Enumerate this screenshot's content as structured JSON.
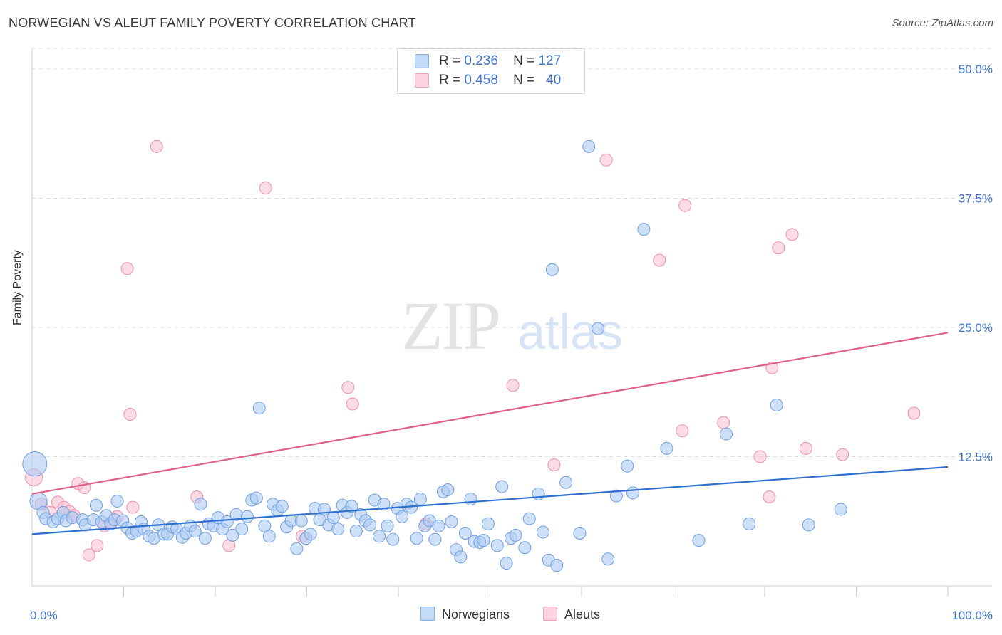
{
  "header": {
    "title": "NORWEGIAN VS ALEUT FAMILY POVERTY CORRELATION CHART",
    "source": "Source: ZipAtlas.com"
  },
  "legend": {
    "rows": [
      {
        "r_label": "R =",
        "r_value": "0.236",
        "n_label": "N =",
        "n_value": "127"
      },
      {
        "r_label": "R =",
        "r_value": "0.458",
        "n_label": "N =",
        "n_value": "40"
      }
    ]
  },
  "watermark": {
    "zip": "ZIP",
    "atlas": "atlas"
  },
  "colors": {
    "blue_fill": "#aeccf3",
    "blue_stroke": "#6f9fe0",
    "blue_line": "#2f6fcf",
    "pink_fill": "#f7bfd0",
    "pink_stroke": "#ec8fab",
    "pink_line": "#e0608c",
    "tick_text": "#3f74c9"
  },
  "chart_data": {
    "type": "scatter",
    "title": "NORWEGIAN VS ALEUT FAMILY POVERTY CORRELATION CHART",
    "xlabel": "",
    "ylabel": "Family Poverty",
    "xlim": [
      0,
      100
    ],
    "ylim": [
      0,
      52
    ],
    "x_tick_labels": [
      "0.0%",
      "100.0%"
    ],
    "y_ticks": [
      12.5,
      25.0,
      37.5,
      50.0
    ],
    "y_tick_labels": [
      "12.5%",
      "25.0%",
      "37.5%",
      "50.0%"
    ],
    "grid": "horizontal dashed",
    "legend_position": "top-center",
    "series": [
      {
        "name": "Norwegians",
        "color": "#aeccf3",
        "trend": {
          "x": [
            0,
            100
          ],
          "y": [
            5.0,
            11.5
          ]
        },
        "points": [
          [
            0.3,
            11.8
          ],
          [
            0.7,
            8.2
          ],
          [
            1.2,
            7.1
          ],
          [
            1.5,
            6.5
          ],
          [
            2.3,
            6.2
          ],
          [
            2.8,
            6.5
          ],
          [
            3.4,
            7.1
          ],
          [
            3.7,
            6.3
          ],
          [
            4.4,
            6.6
          ],
          [
            5.5,
            6.4
          ],
          [
            5.8,
            5.9
          ],
          [
            6.7,
            6.4
          ],
          [
            7.0,
            7.8
          ],
          [
            7.6,
            6.2
          ],
          [
            8.1,
            6.8
          ],
          [
            8.6,
            6.0
          ],
          [
            9.0,
            6.4
          ],
          [
            9.3,
            8.2
          ],
          [
            9.9,
            6.3
          ],
          [
            10.4,
            5.6
          ],
          [
            10.9,
            5.1
          ],
          [
            11.4,
            5.3
          ],
          [
            11.9,
            6.2
          ],
          [
            12.2,
            5.5
          ],
          [
            12.8,
            4.8
          ],
          [
            13.3,
            4.6
          ],
          [
            13.8,
            5.9
          ],
          [
            14.4,
            5.0
          ],
          [
            14.8,
            5.0
          ],
          [
            15.3,
            5.7
          ],
          [
            15.8,
            5.5
          ],
          [
            16.4,
            4.7
          ],
          [
            16.8,
            5.1
          ],
          [
            17.3,
            5.8
          ],
          [
            17.8,
            5.3
          ],
          [
            18.4,
            7.9
          ],
          [
            18.9,
            4.6
          ],
          [
            19.3,
            6.0
          ],
          [
            19.8,
            5.8
          ],
          [
            20.3,
            6.6
          ],
          [
            20.8,
            5.5
          ],
          [
            21.3,
            6.2
          ],
          [
            21.9,
            4.9
          ],
          [
            22.3,
            6.9
          ],
          [
            22.9,
            5.5
          ],
          [
            23.5,
            6.7
          ],
          [
            24.0,
            8.3
          ],
          [
            24.5,
            8.5
          ],
          [
            24.8,
            17.2
          ],
          [
            25.4,
            5.8
          ],
          [
            25.9,
            4.8
          ],
          [
            26.3,
            7.9
          ],
          [
            26.8,
            7.3
          ],
          [
            27.3,
            7.7
          ],
          [
            27.8,
            5.7
          ],
          [
            28.3,
            6.3
          ],
          [
            28.9,
            3.6
          ],
          [
            29.4,
            6.3
          ],
          [
            29.9,
            4.6
          ],
          [
            30.4,
            5.0
          ],
          [
            30.9,
            7.5
          ],
          [
            31.4,
            6.4
          ],
          [
            31.9,
            7.4
          ],
          [
            32.4,
            5.9
          ],
          [
            32.9,
            6.6
          ],
          [
            33.4,
            5.5
          ],
          [
            33.9,
            7.8
          ],
          [
            34.4,
            7.1
          ],
          [
            34.9,
            7.7
          ],
          [
            35.4,
            5.3
          ],
          [
            35.9,
            6.9
          ],
          [
            36.4,
            6.3
          ],
          [
            36.9,
            5.9
          ],
          [
            37.4,
            8.3
          ],
          [
            37.9,
            4.8
          ],
          [
            38.4,
            7.9
          ],
          [
            38.8,
            5.8
          ],
          [
            39.4,
            4.5
          ],
          [
            39.9,
            7.5
          ],
          [
            40.4,
            6.7
          ],
          [
            40.9,
            7.9
          ],
          [
            41.4,
            7.6
          ],
          [
            42.0,
            4.6
          ],
          [
            42.4,
            8.4
          ],
          [
            42.9,
            5.8
          ],
          [
            43.4,
            6.3
          ],
          [
            44.0,
            4.5
          ],
          [
            44.4,
            5.8
          ],
          [
            44.9,
            9.1
          ],
          [
            45.4,
            9.3
          ],
          [
            45.8,
            6.2
          ],
          [
            46.3,
            3.5
          ],
          [
            46.8,
            2.8
          ],
          [
            47.3,
            5.1
          ],
          [
            47.9,
            8.4
          ],
          [
            48.3,
            4.3
          ],
          [
            48.9,
            4.2
          ],
          [
            49.3,
            4.4
          ],
          [
            49.8,
            6.0
          ],
          [
            50.8,
            3.9
          ],
          [
            51.3,
            9.6
          ],
          [
            51.8,
            2.2
          ],
          [
            52.3,
            4.6
          ],
          [
            52.8,
            4.9
          ],
          [
            53.8,
            3.7
          ],
          [
            54.3,
            6.5
          ],
          [
            55.3,
            8.9
          ],
          [
            55.8,
            5.2
          ],
          [
            56.4,
            2.5
          ],
          [
            56.8,
            30.6
          ],
          [
            57.3,
            2.0
          ],
          [
            58.3,
            10.0
          ],
          [
            59.8,
            5.1
          ],
          [
            60.8,
            42.5
          ],
          [
            61.8,
            24.9
          ],
          [
            62.9,
            2.6
          ],
          [
            63.8,
            8.7
          ],
          [
            65.0,
            11.6
          ],
          [
            65.6,
            9.0
          ],
          [
            66.8,
            34.5
          ],
          [
            69.3,
            13.3
          ],
          [
            72.8,
            4.4
          ],
          [
            75.8,
            14.7
          ],
          [
            78.3,
            6.0
          ],
          [
            81.3,
            17.5
          ],
          [
            84.8,
            5.9
          ],
          [
            88.3,
            7.4
          ]
        ]
      },
      {
        "name": "Aleuts",
        "color": "#f7bfd0",
        "trend": {
          "x": [
            0,
            100
          ],
          "y": [
            8.9,
            24.5
          ]
        },
        "points": [
          [
            0.2,
            10.5
          ],
          [
            1.0,
            7.9
          ],
          [
            2.0,
            7.1
          ],
          [
            2.8,
            8.1
          ],
          [
            3.5,
            7.6
          ],
          [
            4.1,
            7.2
          ],
          [
            4.6,
            6.8
          ],
          [
            5.0,
            9.9
          ],
          [
            5.7,
            9.5
          ],
          [
            6.2,
            3.0
          ],
          [
            7.1,
            3.9
          ],
          [
            7.9,
            5.8
          ],
          [
            8.6,
            6.1
          ],
          [
            9.3,
            6.7
          ],
          [
            10.4,
            30.7
          ],
          [
            10.7,
            16.6
          ],
          [
            11.0,
            7.6
          ],
          [
            13.6,
            42.5
          ],
          [
            18.0,
            8.6
          ],
          [
            21.5,
            3.9
          ],
          [
            25.5,
            38.5
          ],
          [
            29.5,
            4.8
          ],
          [
            34.5,
            19.2
          ],
          [
            35.0,
            17.6
          ],
          [
            43.0,
            6.0
          ],
          [
            52.5,
            19.4
          ],
          [
            57.0,
            11.7
          ],
          [
            62.7,
            41.2
          ],
          [
            68.5,
            31.5
          ],
          [
            71.0,
            15.0
          ],
          [
            71.3,
            36.8
          ],
          [
            75.5,
            15.8
          ],
          [
            79.5,
            12.5
          ],
          [
            80.5,
            8.6
          ],
          [
            80.8,
            21.1
          ],
          [
            81.5,
            32.7
          ],
          [
            83.0,
            34.0
          ],
          [
            84.5,
            13.3
          ],
          [
            88.5,
            12.7
          ],
          [
            96.3,
            16.7
          ]
        ]
      }
    ]
  },
  "bottom_legend": {
    "items": [
      {
        "label": "Norwegians"
      },
      {
        "label": "Aleuts"
      }
    ]
  }
}
